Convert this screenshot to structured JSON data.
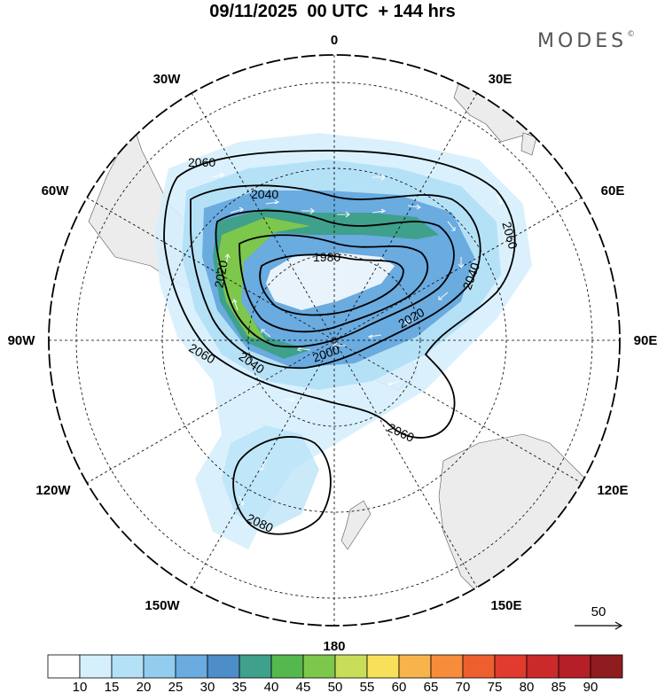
{
  "header": {
    "title": "09/11/2025  00 UTC  + 144 hrs",
    "brand": "MODES",
    "brand_mark": "©"
  },
  "map": {
    "projection": "polar-stereographic-south",
    "longitude_labels": {
      "lon_0": "0",
      "lon_30e": "30E",
      "lon_60e": "60E",
      "lon_90e": "90E",
      "lon_120e": "120E",
      "lon_150e": "150E",
      "lon_180": "180",
      "lon_150w": "150W",
      "lon_120w": "120W",
      "lon_90w": "90W",
      "lon_60w": "60W",
      "lon_30w": "30W"
    },
    "contour_labels": {
      "c2060_top": "2060",
      "c2040_top": "2040",
      "c1980": "1980",
      "c2020_left": "2020",
      "c2060_right": "2060",
      "c2040_right": "2040",
      "c2020_right": "2020",
      "c2000": "2000",
      "c2060_left": "2060",
      "c2040_bottom": "2040",
      "c2060_bottom": "2060",
      "c2080": "2080"
    },
    "reference_vector": {
      "label": "50"
    }
  },
  "colorbar": {
    "labels": [
      "10",
      "15",
      "20",
      "25",
      "30",
      "35",
      "40",
      "45",
      "50",
      "55",
      "60",
      "65",
      "70",
      "75",
      "80",
      "85",
      "90"
    ],
    "colors": [
      "#ffffff",
      "#d6effd",
      "#b5e1f7",
      "#92cdf0",
      "#6aabe0",
      "#4d8dc8",
      "#3fa08c",
      "#55b84e",
      "#7dc74c",
      "#c8de58",
      "#f9e05a",
      "#f8b44c",
      "#f68c3c",
      "#ee5f30",
      "#e03b2e",
      "#cb2a2b",
      "#b51f28",
      "#8f1c1f"
    ]
  }
}
